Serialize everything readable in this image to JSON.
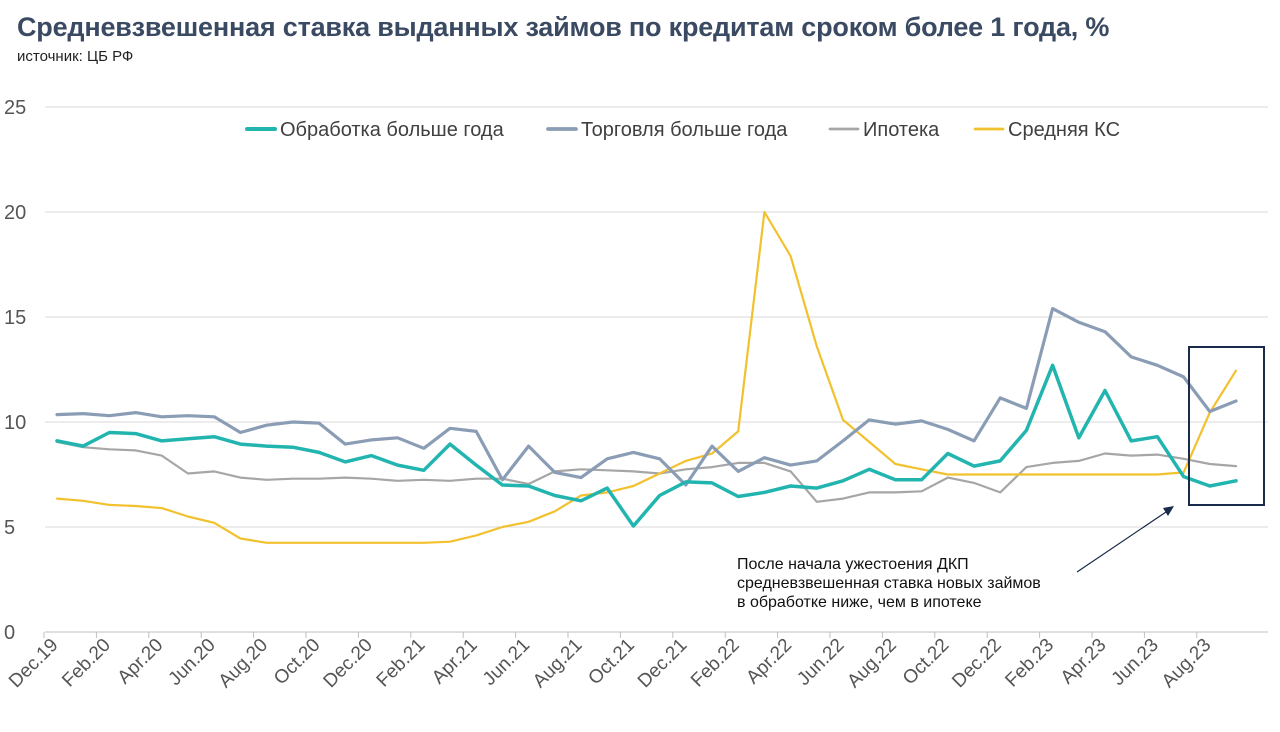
{
  "title": "Средневзвешенная ставка выданных займов по кредитам сроком более 1 года, %",
  "subtitle": "источник: ЦБ РФ",
  "annotation": {
    "lines": [
      "После начала ужестоения ДКП",
      "средневзвешенная ставка новых займов",
      "в обработке ниже, чем в ипотеке"
    ]
  },
  "colors": {
    "processing": "#22b5b0",
    "trade": "#8a9db5",
    "mortgage": "#a6a6a6",
    "key_rate": "#f2c12e",
    "grid": "#d9d9d9",
    "box": "#1a2a4a"
  },
  "chart_data": {
    "type": "line",
    "title": "Средневзвешенная ставка выданных займов по кредитам сроком более 1 года, %",
    "ylim": [
      0,
      25
    ],
    "yticks": [
      "0",
      "5",
      "10",
      "15",
      "20",
      "25"
    ],
    "grid": true,
    "legend_position": "top",
    "x": [
      "Dec.19",
      "Jan.20",
      "Feb.20",
      "Mar.20",
      "Apr.20",
      "May.20",
      "Jun.20",
      "Jul.20",
      "Aug.20",
      "Sep.20",
      "Oct.20",
      "Nov.20",
      "Dec.20",
      "Jan.21",
      "Feb.21",
      "Mar.21",
      "Apr.21",
      "May.21",
      "Jun.21",
      "Jul.21",
      "Aug.21",
      "Sep.21",
      "Oct.21",
      "Nov.21",
      "Dec.21",
      "Jan.22",
      "Feb.22",
      "Mar.22",
      "Apr.22",
      "May.22",
      "Jun.22",
      "Jul.22",
      "Aug.22",
      "Sep.22",
      "Oct.22",
      "Nov.22",
      "Dec.22",
      "Jan.23",
      "Feb.23",
      "Mar.23",
      "Apr.23",
      "May.23",
      "Jun.23",
      "Jul.23",
      "Aug.23",
      "Sep.23"
    ],
    "xtick_labels": [
      "Dec.19",
      "Feb.20",
      "Apr.20",
      "Jun.20",
      "Aug.20",
      "Oct.20",
      "Dec.20",
      "Feb.21",
      "Apr.21",
      "Jun.21",
      "Aug.21",
      "Oct.21",
      "Dec.21",
      "Feb.22",
      "Apr.22",
      "Jun.22",
      "Aug.22",
      "Oct.22",
      "Dec.22",
      "Feb.23",
      "Apr.23",
      "Jun.23",
      "Aug.23"
    ],
    "series": [
      {
        "name": "Обработка больше года",
        "key": "processing",
        "values": [
          9.1,
          8.85,
          9.5,
          9.45,
          9.1,
          9.2,
          9.3,
          8.95,
          8.85,
          8.8,
          8.55,
          8.1,
          8.4,
          7.95,
          7.7,
          8.95,
          7.95,
          7.0,
          6.95,
          6.5,
          6.25,
          6.85,
          5.05,
          6.5,
          7.15,
          7.1,
          6.45,
          6.65,
          6.95,
          6.85,
          7.2,
          7.75,
          7.25,
          7.25,
          8.5,
          7.9,
          8.15,
          9.6,
          12.7,
          9.25,
          11.5,
          9.1,
          9.3,
          7.4,
          6.95,
          7.2
        ]
      },
      {
        "name": "Торговля больше года",
        "key": "trade",
        "values": [
          10.35,
          10.4,
          10.3,
          10.45,
          10.25,
          10.3,
          10.25,
          9.5,
          9.85,
          10.0,
          9.95,
          8.95,
          9.15,
          9.25,
          8.75,
          9.7,
          9.55,
          7.25,
          8.85,
          7.6,
          7.35,
          8.25,
          8.55,
          8.25,
          7.0,
          8.85,
          7.65,
          8.3,
          7.95,
          8.15,
          9.1,
          10.1,
          9.9,
          10.05,
          9.65,
          9.1,
          11.15,
          10.65,
          15.4,
          14.75,
          14.3,
          13.1,
          12.7,
          12.15,
          10.5,
          11.0
        ]
      },
      {
        "name": "Ипотека",
        "key": "mortgage",
        "values": [
          9.05,
          8.8,
          8.7,
          8.65,
          8.4,
          7.55,
          7.65,
          7.35,
          7.25,
          7.3,
          7.3,
          7.35,
          7.3,
          7.2,
          7.25,
          7.2,
          7.3,
          7.3,
          7.05,
          7.65,
          7.75,
          7.7,
          7.65,
          7.55,
          7.75,
          7.85,
          8.05,
          8.05,
          7.65,
          6.2,
          6.35,
          6.65,
          6.65,
          6.7,
          7.35,
          7.1,
          6.65,
          7.85,
          8.05,
          8.15,
          8.5,
          8.4,
          8.45,
          8.25,
          8.0,
          7.9
        ]
      },
      {
        "name": "Средняя КС",
        "key": "key_rate",
        "values": [
          6.35,
          6.25,
          6.05,
          6.0,
          5.9,
          5.5,
          5.2,
          4.45,
          4.25,
          4.25,
          4.25,
          4.25,
          4.25,
          4.25,
          4.25,
          4.3,
          4.6,
          5.0,
          5.25,
          5.75,
          6.5,
          6.65,
          6.95,
          7.55,
          8.15,
          8.5,
          9.55,
          20.0,
          17.9,
          13.6,
          10.1,
          9.05,
          8.0,
          7.75,
          7.5,
          7.5,
          7.5,
          7.5,
          7.5,
          7.5,
          7.5,
          7.5,
          7.5,
          7.6,
          10.45,
          12.45
        ]
      }
    ]
  }
}
